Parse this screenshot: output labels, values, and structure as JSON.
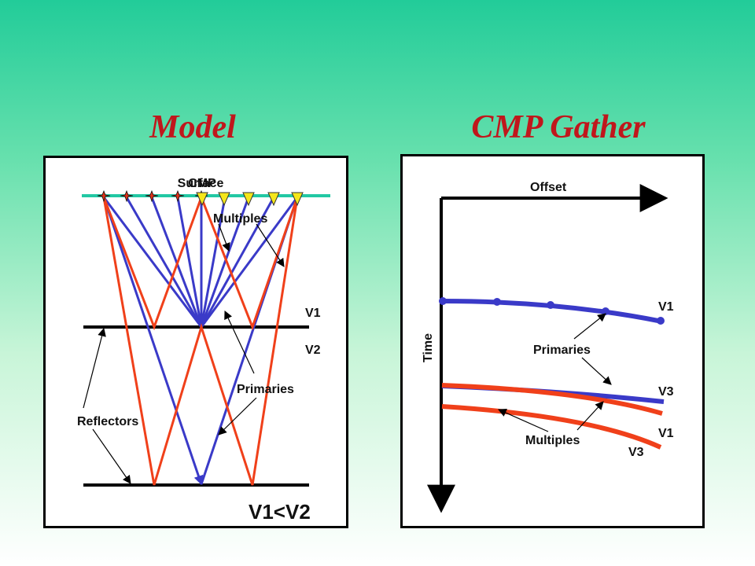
{
  "titles": {
    "model": "Model",
    "gather": "CMP Gather"
  },
  "model": {
    "labels": {
      "surface": "Surface",
      "cmp": "CMP",
      "multiples": "Multiples",
      "primaries": "Primaries",
      "reflectors": "Reflectors",
      "v1": "V1",
      "v2": "V2",
      "velocity_relation": "V1<V2"
    },
    "colors": {
      "surface_line": "#22c8a4",
      "primary_ray": "#3a3ac8",
      "multiple_ray": "#f0401a",
      "receiver": "#f5e61a",
      "source": "#e03018"
    }
  },
  "gather": {
    "labels": {
      "offset": "Offset",
      "time": "Time",
      "primaries": "Primaries",
      "multiples": "Multiples",
      "v1_top": "V1",
      "v3_blue": "V3",
      "v1_red": "V1",
      "v3_red": "V3"
    },
    "colors": {
      "primary_curve": "#3a3ac8",
      "multiple_curve": "#f0401a"
    }
  }
}
